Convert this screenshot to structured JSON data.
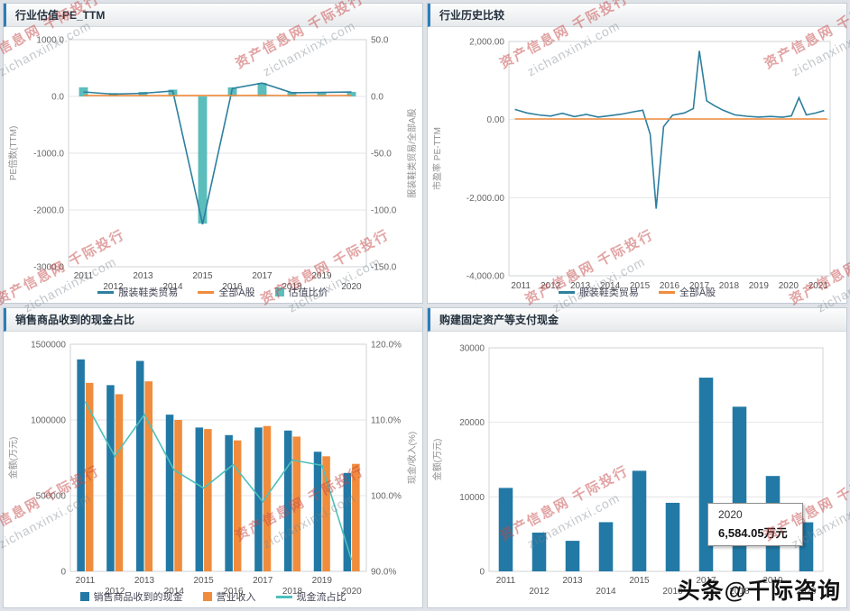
{
  "watermark": {
    "red_text": "资产信息网 千际投行",
    "gray_text": "zichanxinxi.com"
  },
  "byline": "头条@千际咨询",
  "chart_data": [
    {
      "type": "line",
      "title": "行业估值-PE_TTM",
      "ylabel": "PE倍数(TTM)",
      "ylabel_right": "服装鞋类贸易/全部A股",
      "categories": [
        "2011",
        "2012",
        "2013",
        "2014",
        "2015",
        "2016",
        "2017",
        "2018",
        "2019",
        "2020"
      ],
      "stagger_x": true,
      "grid": true,
      "legend_position": "bottom",
      "show_legend": true,
      "ylim": [
        -3000,
        1000
      ],
      "yticks": [
        {
          "v": 1000,
          "label": "1000.0"
        },
        {
          "v": 0,
          "label": "0.0"
        },
        {
          "v": -1000,
          "label": "-1000.0"
        },
        {
          "v": -2000,
          "label": "-2000.0"
        },
        {
          "v": -3000,
          "label": "-3000.0"
        }
      ],
      "ylim_right": [
        -150,
        50
      ],
      "yticks_right": [
        {
          "v": 50,
          "label": "50.0"
        },
        {
          "v": 0,
          "label": "0.0"
        },
        {
          "v": -50,
          "label": "-50.0"
        },
        {
          "v": -100,
          "label": "-100.0"
        },
        {
          "v": -150,
          "label": "-150.0"
        }
      ],
      "series": [
        {
          "name": "服装鞋类贸易",
          "kind": "line",
          "axis": "left",
          "color": "#2e7f9e",
          "values": [
            80,
            40,
            55,
            95,
            -2250,
            140,
            235,
            65,
            70,
            78
          ]
        },
        {
          "name": "全部A股",
          "kind": "line",
          "axis": "left",
          "color": "#f08c3c",
          "values": [
            18,
            15,
            14,
            15,
            17,
            18,
            19,
            16,
            16,
            17
          ]
        },
        {
          "name": "估值比价",
          "kind": "bar",
          "axis": "right",
          "color": "#5cbdbd",
          "values": [
            8,
            3,
            4,
            6,
            -112,
            8,
            12,
            4,
            4,
            4
          ]
        }
      ]
    },
    {
      "type": "line",
      "title": "行业历史比较",
      "ylabel": "市盈率 PE-TTM",
      "grid": true,
      "legend_position": "bottom",
      "show_legend": true,
      "xlim": [
        2010.6,
        2021.4
      ],
      "xticks": [
        {
          "v": 2011,
          "label": "2011"
        },
        {
          "v": 2012,
          "label": "2012"
        },
        {
          "v": 2013,
          "label": "2013"
        },
        {
          "v": 2014,
          "label": "2014"
        },
        {
          "v": 2015,
          "label": "2015"
        },
        {
          "v": 2016,
          "label": "2016"
        },
        {
          "v": 2017,
          "label": "2017"
        },
        {
          "v": 2018,
          "label": "2018"
        },
        {
          "v": 2019,
          "label": "2019"
        },
        {
          "v": 2020,
          "label": "2020"
        },
        {
          "v": 2021,
          "label": "2021"
        }
      ],
      "ylim": [
        -4000,
        2000
      ],
      "yticks": [
        {
          "v": 2000,
          "label": "2,000.00"
        },
        {
          "v": 0,
          "label": "0.00"
        },
        {
          "v": -2000,
          "label": "-2,000.00"
        },
        {
          "v": -4000,
          "label": "-4,000.00"
        }
      ],
      "series": [
        {
          "name": "服装鞋类贸易",
          "kind": "line",
          "axis": "left",
          "color": "#2e7f9e",
          "points": [
            [
              2010.8,
              260
            ],
            [
              2011.2,
              170
            ],
            [
              2011.6,
              120
            ],
            [
              2012,
              90
            ],
            [
              2012.4,
              160
            ],
            [
              2012.8,
              75
            ],
            [
              2013.2,
              130
            ],
            [
              2013.6,
              65
            ],
            [
              2014,
              100
            ],
            [
              2014.4,
              140
            ],
            [
              2014.8,
              200
            ],
            [
              2015.1,
              240
            ],
            [
              2015.35,
              -380
            ],
            [
              2015.55,
              -2280
            ],
            [
              2015.8,
              -180
            ],
            [
              2016.1,
              110
            ],
            [
              2016.5,
              170
            ],
            [
              2016.8,
              280
            ],
            [
              2017,
              1760
            ],
            [
              2017.25,
              480
            ],
            [
              2017.5,
              360
            ],
            [
              2017.8,
              240
            ],
            [
              2018.2,
              120
            ],
            [
              2018.6,
              85
            ],
            [
              2019,
              65
            ],
            [
              2019.4,
              80
            ],
            [
              2019.8,
              60
            ],
            [
              2020.1,
              95
            ],
            [
              2020.35,
              560
            ],
            [
              2020.6,
              120
            ],
            [
              2020.9,
              165
            ],
            [
              2021.2,
              230
            ]
          ]
        },
        {
          "name": "全部A股",
          "kind": "line",
          "axis": "left",
          "color": "#f08c3c",
          "points": [
            [
              2010.8,
              15
            ],
            [
              2021.3,
              15
            ]
          ]
        }
      ]
    },
    {
      "type": "bar",
      "title": "销售商品收到的现金占比",
      "ylabel": "金额(万元)",
      "ylabel_right": "现金/收入(%)",
      "categories": [
        "2011",
        "2012",
        "2013",
        "2014",
        "2015",
        "2016",
        "2017",
        "2018",
        "2019",
        "2020"
      ],
      "stagger_x": true,
      "grid": true,
      "legend_position": "bottom",
      "show_legend": true,
      "ylim": [
        0,
        1500000
      ],
      "yticks": [
        {
          "v": 1500000,
          "label": "1500000"
        },
        {
          "v": 1000000,
          "label": "1000000"
        },
        {
          "v": 500000,
          "label": "500000"
        },
        {
          "v": 0,
          "label": "0"
        }
      ],
      "ylim_right": [
        90,
        120
      ],
      "yticks_right": [
        {
          "v": 120,
          "label": "120.0%"
        },
        {
          "v": 110,
          "label": "110.0%"
        },
        {
          "v": 100,
          "label": "100.0%"
        },
        {
          "v": 90,
          "label": "90.0%"
        }
      ],
      "series": [
        {
          "name": "销售商品收到的现金",
          "kind": "bar",
          "axis": "left",
          "color": "#2279a5",
          "values": [
            1400000,
            1230000,
            1390000,
            1035000,
            950000,
            900000,
            950000,
            930000,
            790000,
            650000
          ]
        },
        {
          "name": "营业收入",
          "kind": "bar",
          "axis": "left",
          "color": "#f08c3c",
          "values": [
            1245000,
            1170000,
            1255000,
            1000000,
            940000,
            865000,
            960000,
            890000,
            760000,
            710000
          ]
        },
        {
          "name": "现金流占比",
          "kind": "line",
          "axis": "right",
          "color": "#4cc0bc",
          "values": [
            112.4,
            105.2,
            110.7,
            103.4,
            101.0,
            104.1,
            99.2,
            104.7,
            104.0,
            91.5
          ]
        }
      ]
    },
    {
      "type": "bar",
      "title": "购建固定资产等支付现金",
      "ylabel": "金额(万元)",
      "categories": [
        "2011",
        "2012",
        "2013",
        "2014",
        "2015",
        "2016",
        "2017",
        "2018",
        "2019",
        "2020"
      ],
      "stagger_x": true,
      "grid": true,
      "show_legend": false,
      "ylim": [
        0,
        30000
      ],
      "yticks": [
        {
          "v": 30000,
          "label": "30000"
        },
        {
          "v": 20000,
          "label": "20000"
        },
        {
          "v": 10000,
          "label": "10000"
        },
        {
          "v": 0,
          "label": "0"
        }
      ],
      "series": [
        {
          "name": "购建固定资产等支付现金",
          "kind": "bar",
          "axis": "left",
          "color": "#2279a5",
          "values": [
            11200,
            5200,
            4100,
            6600,
            13500,
            9200,
            26000,
            22100,
            12800,
            6584.05
          ]
        }
      ],
      "tooltip": {
        "label": "2020",
        "value": "6,584.05万元"
      }
    }
  ]
}
